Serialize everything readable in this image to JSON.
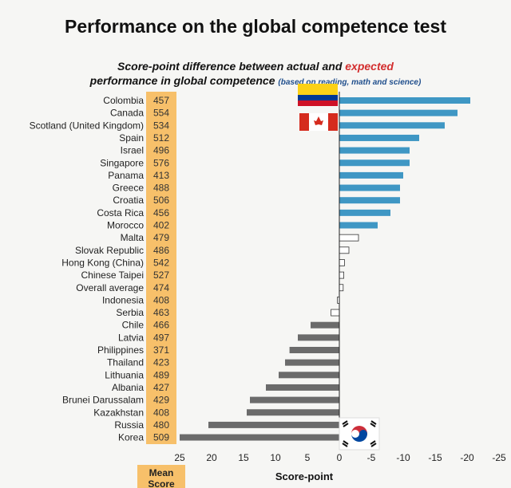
{
  "title": "Performance on the global competence test",
  "subtitle": {
    "line1_a": "Score-point difference between actual and ",
    "line1_b": "expected",
    "line2": "performance in global competence ",
    "note": "(based on reading, math and science)"
  },
  "mean_label": "Mean Score",
  "colors": {
    "above": "#3f97c4",
    "neutral": "#ffffff",
    "below": "#6b6b6b",
    "mean_column": "#f7c06a",
    "accent": "#d32f2f"
  },
  "chart_data": {
    "type": "bar",
    "orientation": "horizontal",
    "xlabel": "Score-point",
    "xlim": [
      25,
      -25
    ],
    "xticks": [
      25,
      20,
      15,
      10,
      5,
      0,
      -5,
      -10,
      -15,
      -20,
      -25
    ],
    "categories": [
      "Colombia",
      "Canada",
      "Scotland (United Kingdom)",
      "Spain",
      "Israel",
      "Singapore",
      "Panama",
      "Greece",
      "Croatia",
      "Costa Rica",
      "Morocco",
      "Malta",
      "Slovak Republic",
      "Hong Kong (China)",
      "Chinese Taipei",
      "Overall average",
      "Indonesia",
      "Serbia",
      "Chile",
      "Latvia",
      "Philippines",
      "Thailand",
      "Lithuania",
      "Albania",
      "Brunei Darussalam",
      "Kazakhstan",
      "Russia",
      "Korea"
    ],
    "mean_scores": [
      457,
      554,
      534,
      512,
      496,
      576,
      413,
      488,
      506,
      456,
      402,
      479,
      486,
      542,
      527,
      474,
      408,
      463,
      466,
      497,
      371,
      423,
      489,
      427,
      429,
      408,
      480,
      509
    ],
    "values": [
      -20.5,
      -18.5,
      -16.5,
      -12.5,
      -11,
      -11,
      -10,
      -9.5,
      -9.5,
      -8,
      -6,
      -3,
      -1.5,
      -0.8,
      -0.7,
      -0.6,
      0.3,
      1.3,
      4.5,
      6.5,
      7.8,
      8.5,
      9.5,
      11.5,
      14,
      14.5,
      20.5,
      25
    ],
    "significance": [
      "above",
      "above",
      "above",
      "above",
      "above",
      "above",
      "above",
      "above",
      "above",
      "above",
      "above",
      "neutral",
      "neutral",
      "neutral",
      "neutral",
      "neutral",
      "neutral",
      "neutral",
      "below",
      "below",
      "below",
      "below",
      "below",
      "below",
      "below",
      "below",
      "below",
      "below"
    ]
  }
}
